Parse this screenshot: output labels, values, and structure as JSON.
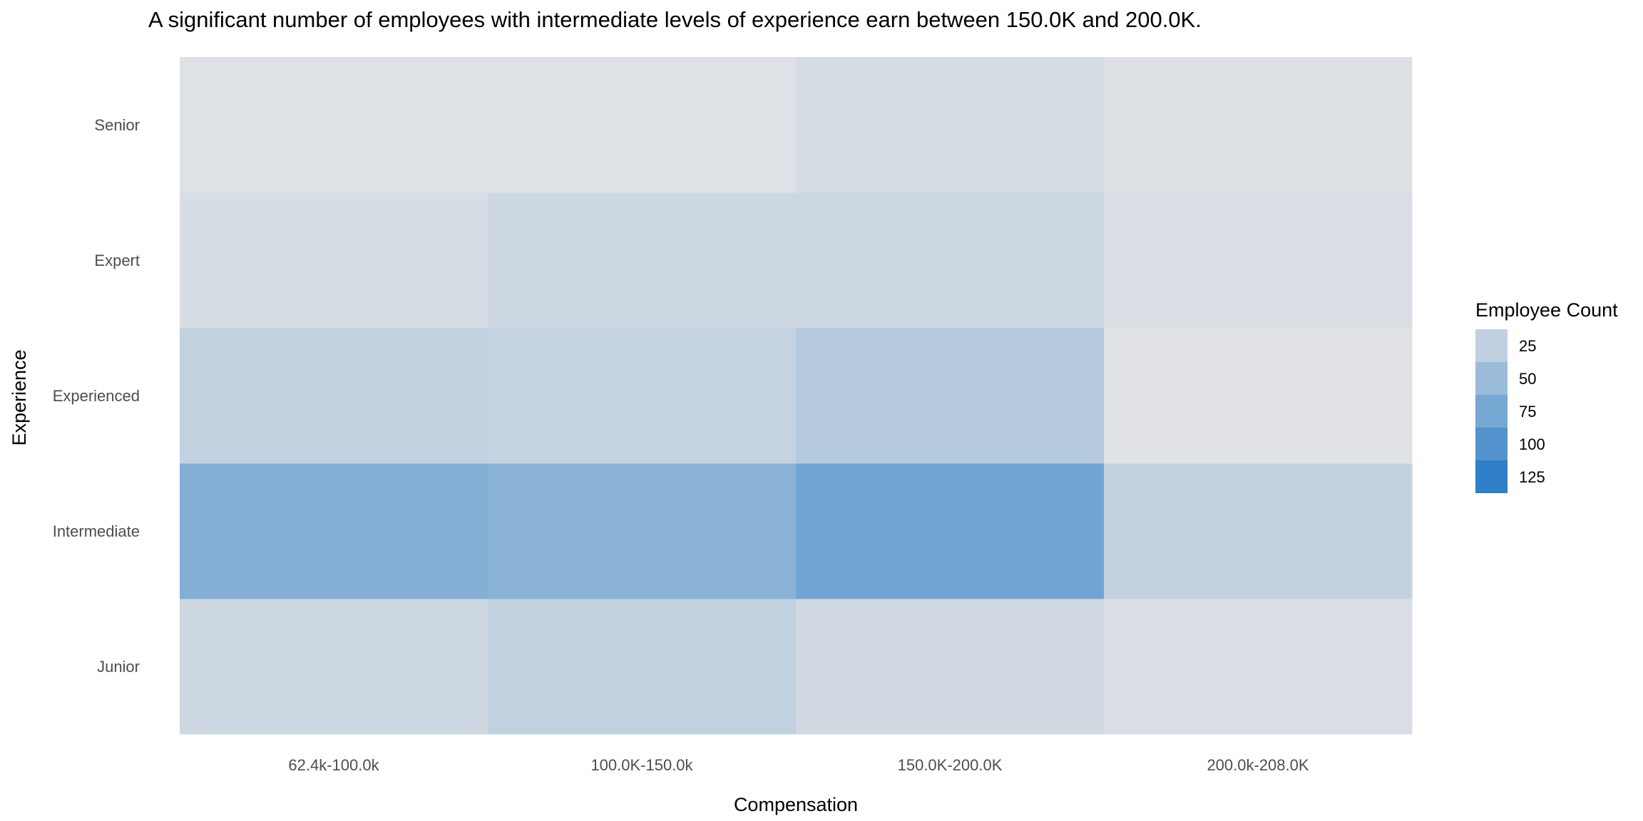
{
  "chart_data": {
    "type": "heatmap",
    "title": "A significant number of employees with intermediate levels of experience earn between 150.0K and 200.0K.",
    "xlabel": "Compensation",
    "ylabel": "Experience",
    "x_categories": [
      "62.4k-100.0k",
      "100.0K-150.0k",
      "150.0K-200.0K",
      "200.0k-208.0K"
    ],
    "y_categories": [
      "Junior",
      "Intermediate",
      "Experienced",
      "Expert",
      "Senior"
    ],
    "values": [
      [
        15,
        24,
        14,
        7
      ],
      [
        66,
        62,
        79,
        22
      ],
      [
        24,
        21,
        32,
        2
      ],
      [
        9,
        16,
        16,
        7
      ],
      [
        4,
        4,
        10,
        5
      ]
    ],
    "legend": {
      "title": "Employee Count",
      "breaks": [
        25,
        50,
        75,
        100,
        125
      ],
      "position": "right"
    },
    "color_scale": {
      "low": "#e4e4e6",
      "high": "#1f77c4",
      "min": 0,
      "max": 135
    }
  }
}
